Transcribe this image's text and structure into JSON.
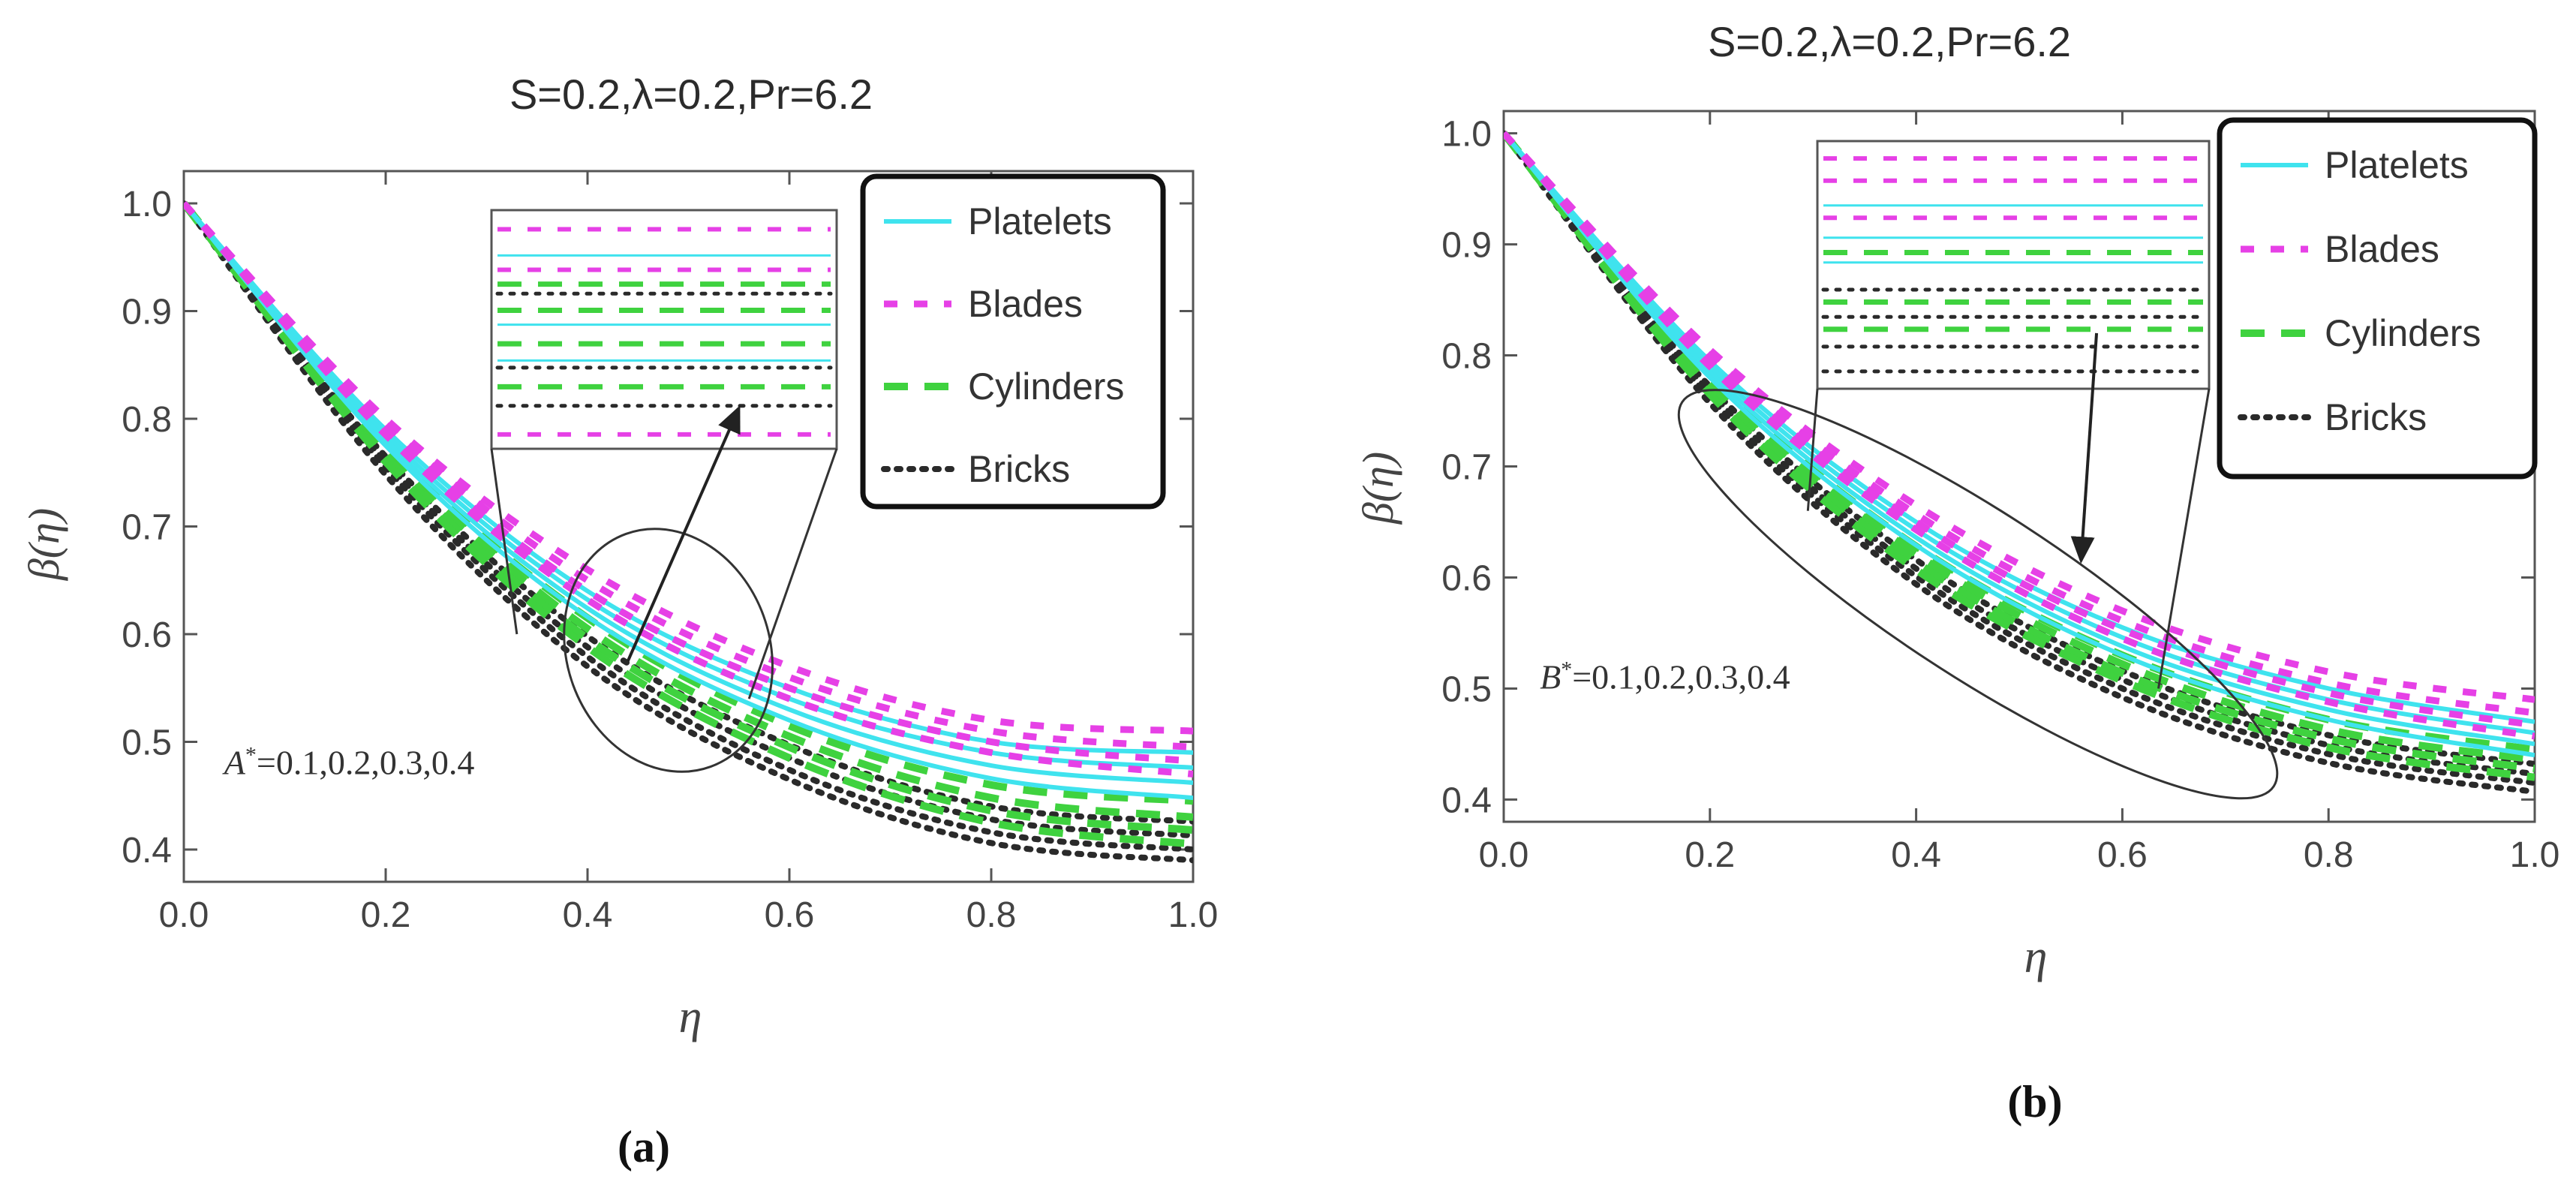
{
  "chart_data": [
    {
      "panel_label": "(a)",
      "type": "line",
      "title": "S=0.2,λ=0.2,Pr=6.2",
      "xlabel": "η",
      "ylabel": "β(η)",
      "xlim": [
        0,
        1
      ],
      "ylim": [
        0.37,
        1.03
      ],
      "xticks": [
        0.0,
        0.2,
        0.4,
        0.6,
        0.8,
        1.0
      ],
      "yticks": [
        0.4,
        0.5,
        0.6,
        0.7,
        0.8,
        0.9,
        1.0
      ],
      "annotation": {
        "sym": "A",
        "text": "=0.1,0.2,0.3,0.4"
      },
      "legend": [
        {
          "name": "Platelets",
          "color": "#3fe3ee",
          "style": "solid"
        },
        {
          "name": "Blades",
          "color": "#e640e6",
          "style": "dash"
        },
        {
          "name": "Cylinders",
          "color": "#3fd23f",
          "style": "longdash"
        },
        {
          "name": "Bricks",
          "color": "#2a2a2a",
          "style": "dot"
        }
      ],
      "parameter_values": [
        0.1,
        0.2,
        0.3,
        0.4
      ],
      "x": [
        0.0,
        0.2,
        0.4,
        0.6,
        0.8,
        1.0
      ],
      "series": [
        {
          "name": "Platelets",
          "param": 0.1,
          "values": [
            1.0,
            0.79,
            0.64,
            0.55,
            0.5,
            0.49
          ]
        },
        {
          "name": "Platelets",
          "param": 0.2,
          "values": [
            1.0,
            0.785,
            0.632,
            0.54,
            0.49,
            0.476
          ]
        },
        {
          "name": "Platelets",
          "param": 0.3,
          "values": [
            1.0,
            0.78,
            0.624,
            0.53,
            0.478,
            0.462
          ]
        },
        {
          "name": "Platelets",
          "param": 0.4,
          "values": [
            1.0,
            0.775,
            0.616,
            0.52,
            0.466,
            0.448
          ]
        },
        {
          "name": "Blades",
          "param": 0.1,
          "values": [
            1.0,
            0.8,
            0.66,
            0.57,
            0.52,
            0.51
          ]
        },
        {
          "name": "Blades",
          "param": 0.2,
          "values": [
            1.0,
            0.795,
            0.65,
            0.56,
            0.51,
            0.495
          ]
        },
        {
          "name": "Blades",
          "param": 0.3,
          "values": [
            1.0,
            0.79,
            0.64,
            0.55,
            0.5,
            0.482
          ]
        },
        {
          "name": "Blades",
          "param": 0.4,
          "values": [
            1.0,
            0.785,
            0.632,
            0.54,
            0.49,
            0.47
          ]
        },
        {
          "name": "Cylinders",
          "param": 0.1,
          "values": [
            1.0,
            0.775,
            0.615,
            0.515,
            0.46,
            0.445
          ]
        },
        {
          "name": "Cylinders",
          "param": 0.2,
          "values": [
            1.0,
            0.77,
            0.605,
            0.505,
            0.448,
            0.43
          ]
        },
        {
          "name": "Cylinders",
          "param": 0.3,
          "values": [
            1.0,
            0.765,
            0.596,
            0.495,
            0.436,
            0.418
          ]
        },
        {
          "name": "Cylinders",
          "param": 0.4,
          "values": [
            1.0,
            0.76,
            0.588,
            0.485,
            0.425,
            0.405
          ]
        },
        {
          "name": "Bricks",
          "param": 0.1,
          "values": [
            1.0,
            0.765,
            0.598,
            0.497,
            0.44,
            0.426
          ]
        },
        {
          "name": "Bricks",
          "param": 0.2,
          "values": [
            1.0,
            0.76,
            0.588,
            0.485,
            0.428,
            0.413
          ]
        },
        {
          "name": "Bricks",
          "param": 0.3,
          "values": [
            1.0,
            0.755,
            0.579,
            0.474,
            0.416,
            0.4
          ]
        },
        {
          "name": "Bricks",
          "param": 0.4,
          "values": [
            1.0,
            0.748,
            0.57,
            0.465,
            0.406,
            0.39
          ]
        }
      ]
    },
    {
      "panel_label": "(b)",
      "type": "line",
      "title": "S=0.2,λ=0.2,Pr=6.2",
      "xlabel": "η",
      "ylabel": "β(η)",
      "xlim": [
        0,
        1
      ],
      "ylim": [
        0.38,
        1.02
      ],
      "xticks": [
        0.0,
        0.2,
        0.4,
        0.6,
        0.8,
        1.0
      ],
      "yticks": [
        0.4,
        0.5,
        0.6,
        0.7,
        0.8,
        0.9,
        1.0
      ],
      "annotation": {
        "sym": "B",
        "text": "=0.1,0.2,0.3,0.4"
      },
      "legend": [
        {
          "name": "Platelets",
          "color": "#3fe3ee",
          "style": "solid"
        },
        {
          "name": "Blades",
          "color": "#e640e6",
          "style": "dash"
        },
        {
          "name": "Cylinders",
          "color": "#3fd23f",
          "style": "longdash"
        },
        {
          "name": "Bricks",
          "color": "#2a2a2a",
          "style": "dot"
        }
      ],
      "parameter_values": [
        0.1,
        0.2,
        0.3,
        0.4
      ],
      "x": [
        0.0,
        0.2,
        0.4,
        0.6,
        0.8,
        1.0
      ],
      "series": [
        {
          "name": "Platelets",
          "param": 0.1,
          "values": [
            1.0,
            0.795,
            0.65,
            0.555,
            0.5,
            0.47
          ]
        },
        {
          "name": "Platelets",
          "param": 0.2,
          "values": [
            1.0,
            0.79,
            0.643,
            0.546,
            0.49,
            0.46
          ]
        },
        {
          "name": "Platelets",
          "param": 0.3,
          "values": [
            1.0,
            0.785,
            0.636,
            0.538,
            0.481,
            0.45
          ]
        },
        {
          "name": "Platelets",
          "param": 0.4,
          "values": [
            1.0,
            0.78,
            0.629,
            0.53,
            0.472,
            0.44
          ]
        },
        {
          "name": "Blades",
          "param": 0.1,
          "values": [
            1.0,
            0.805,
            0.665,
            0.57,
            0.515,
            0.49
          ]
        },
        {
          "name": "Blades",
          "param": 0.2,
          "values": [
            1.0,
            0.8,
            0.657,
            0.561,
            0.505,
            0.478
          ]
        },
        {
          "name": "Blades",
          "param": 0.3,
          "values": [
            1.0,
            0.795,
            0.65,
            0.553,
            0.496,
            0.467
          ]
        },
        {
          "name": "Blades",
          "param": 0.4,
          "values": [
            1.0,
            0.79,
            0.643,
            0.545,
            0.488,
            0.457
          ]
        },
        {
          "name": "Cylinders",
          "param": 0.1,
          "values": [
            1.0,
            0.78,
            0.628,
            0.53,
            0.472,
            0.445
          ]
        },
        {
          "name": "Cylinders",
          "param": 0.2,
          "values": [
            1.0,
            0.775,
            0.621,
            0.522,
            0.463,
            0.436
          ]
        },
        {
          "name": "Cylinders",
          "param": 0.3,
          "values": [
            1.0,
            0.77,
            0.614,
            0.514,
            0.455,
            0.428
          ]
        },
        {
          "name": "Cylinders",
          "param": 0.4,
          "values": [
            1.0,
            0.765,
            0.607,
            0.507,
            0.447,
            0.42
          ]
        },
        {
          "name": "Bricks",
          "param": 0.1,
          "values": [
            1.0,
            0.772,
            0.616,
            0.516,
            0.458,
            0.432
          ]
        },
        {
          "name": "Bricks",
          "param": 0.2,
          "values": [
            1.0,
            0.767,
            0.608,
            0.508,
            0.449,
            0.423
          ]
        },
        {
          "name": "Bricks",
          "param": 0.3,
          "values": [
            1.0,
            0.762,
            0.601,
            0.5,
            0.441,
            0.415
          ]
        },
        {
          "name": "Bricks",
          "param": 0.4,
          "values": [
            1.0,
            0.757,
            0.594,
            0.492,
            0.433,
            0.407
          ]
        }
      ]
    }
  ]
}
